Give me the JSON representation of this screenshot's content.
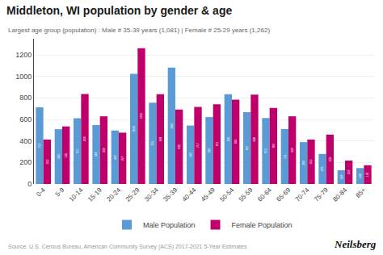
{
  "chart_data": {
    "type": "bar",
    "title": "Middleton, WI population by gender & age",
    "subtitle": "Largest age group (population) : Male # 35-39 years (1,081) | Female # 25-29 years (1,262)",
    "categories": [
      "0-4",
      "5-9",
      "10-14",
      "15-19",
      "20-24",
      "25-29",
      "30-34",
      "35-39",
      "40-44",
      "45-49",
      "50-54",
      "55-59",
      "60-64",
      "65-69",
      "70-74",
      "75-79",
      "80-84",
      "85+"
    ],
    "series": [
      {
        "name": "Male Population",
        "color": "#5b9bd5",
        "values": [
          713,
          509,
          611,
          548,
          497,
          1023,
          755,
          1081,
          543,
          622,
          835,
          667,
          613,
          511,
          389,
          279,
          128,
          148
        ]
      },
      {
        "name": "Female Population",
        "color": "#c0006a",
        "values": [
          413,
          535,
          836,
          629,
          477,
          1262,
          834,
          692,
          717,
          741,
          784,
          830,
          706,
          629,
          413,
          459,
          218,
          174
        ]
      }
    ],
    "ylim": [
      0,
      1350
    ],
    "yticks": [
      0,
      200,
      400,
      600,
      800,
      1000,
      1200
    ],
    "grid": true,
    "legend": "bottom",
    "data_labels": true,
    "annotations": [
      "Source: U.S. Census Bureau, American Community Survey (ACS) 2017-2021 5-Year Estimates",
      "Neilsberg"
    ]
  }
}
